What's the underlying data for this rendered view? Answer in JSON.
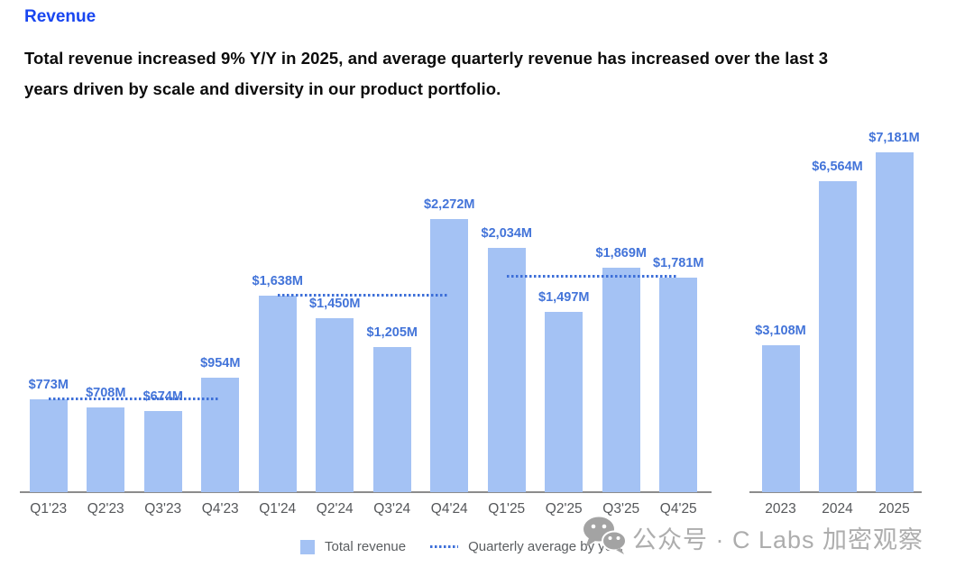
{
  "page": {
    "title": "Revenue",
    "description_line1": "Total revenue increased 9% Y/Y in 2025, and average quarterly revenue has increased over the last 3",
    "description_line2": "years driven by scale and diversity in our product portfolio."
  },
  "legend": {
    "total_revenue_label": "Total revenue",
    "quarterly_average_label": "Quarterly average by year"
  },
  "watermark": {
    "icon": "wechat-icon",
    "text": "公众号 · C Labs 加密观察"
  },
  "colors": {
    "title_blue": "#1946f0",
    "bar_fill": "#a4c2f4",
    "value_label_blue": "#4374d9",
    "average_line_blue": "#3d6fd8",
    "axis_gray": "#8c8c8c",
    "tick_label_gray": "#55575a",
    "watermark_gray": "#adadad"
  },
  "chart_data": [
    {
      "type": "bar",
      "name": "quarterly-revenue",
      "series_name": "Total revenue",
      "categories": [
        "Q1'23",
        "Q2'23",
        "Q3'23",
        "Q4'23",
        "Q1'24",
        "Q2'24",
        "Q3'24",
        "Q4'24",
        "Q1'25",
        "Q2'25",
        "Q3'25",
        "Q4'25"
      ],
      "values": [
        773,
        708,
        674,
        954,
        1638,
        1450,
        1205,
        2272,
        2034,
        1497,
        1869,
        1781
      ],
      "data_labels": [
        "$773M",
        "$708M",
        "$674M",
        "$954M",
        "$1,638M",
        "$1,450M",
        "$1,205M",
        "$2,272M",
        "$2,034M",
        "$1,497M",
        "$1,869M",
        "$1,781M"
      ],
      "averages": [
        {
          "year": "2023",
          "value": 777.25,
          "from_category": "Q1'23",
          "to_category": "Q4'23"
        },
        {
          "year": "2024",
          "value": 1641.25,
          "from_category": "Q1'24",
          "to_category": "Q4'24"
        },
        {
          "year": "2025",
          "value": 1795.25,
          "from_category": "Q1'25",
          "to_category": "Q4'25"
        }
      ],
      "legend_position": "bottom",
      "grid": false
    },
    {
      "type": "bar",
      "name": "annual-revenue",
      "series_name": "Total revenue",
      "categories": [
        "2023",
        "2024",
        "2025"
      ],
      "values": [
        3108,
        6564,
        7181
      ],
      "data_labels": [
        "$3,108M",
        "$6,564M",
        "$7,181M"
      ],
      "grid": false
    }
  ]
}
